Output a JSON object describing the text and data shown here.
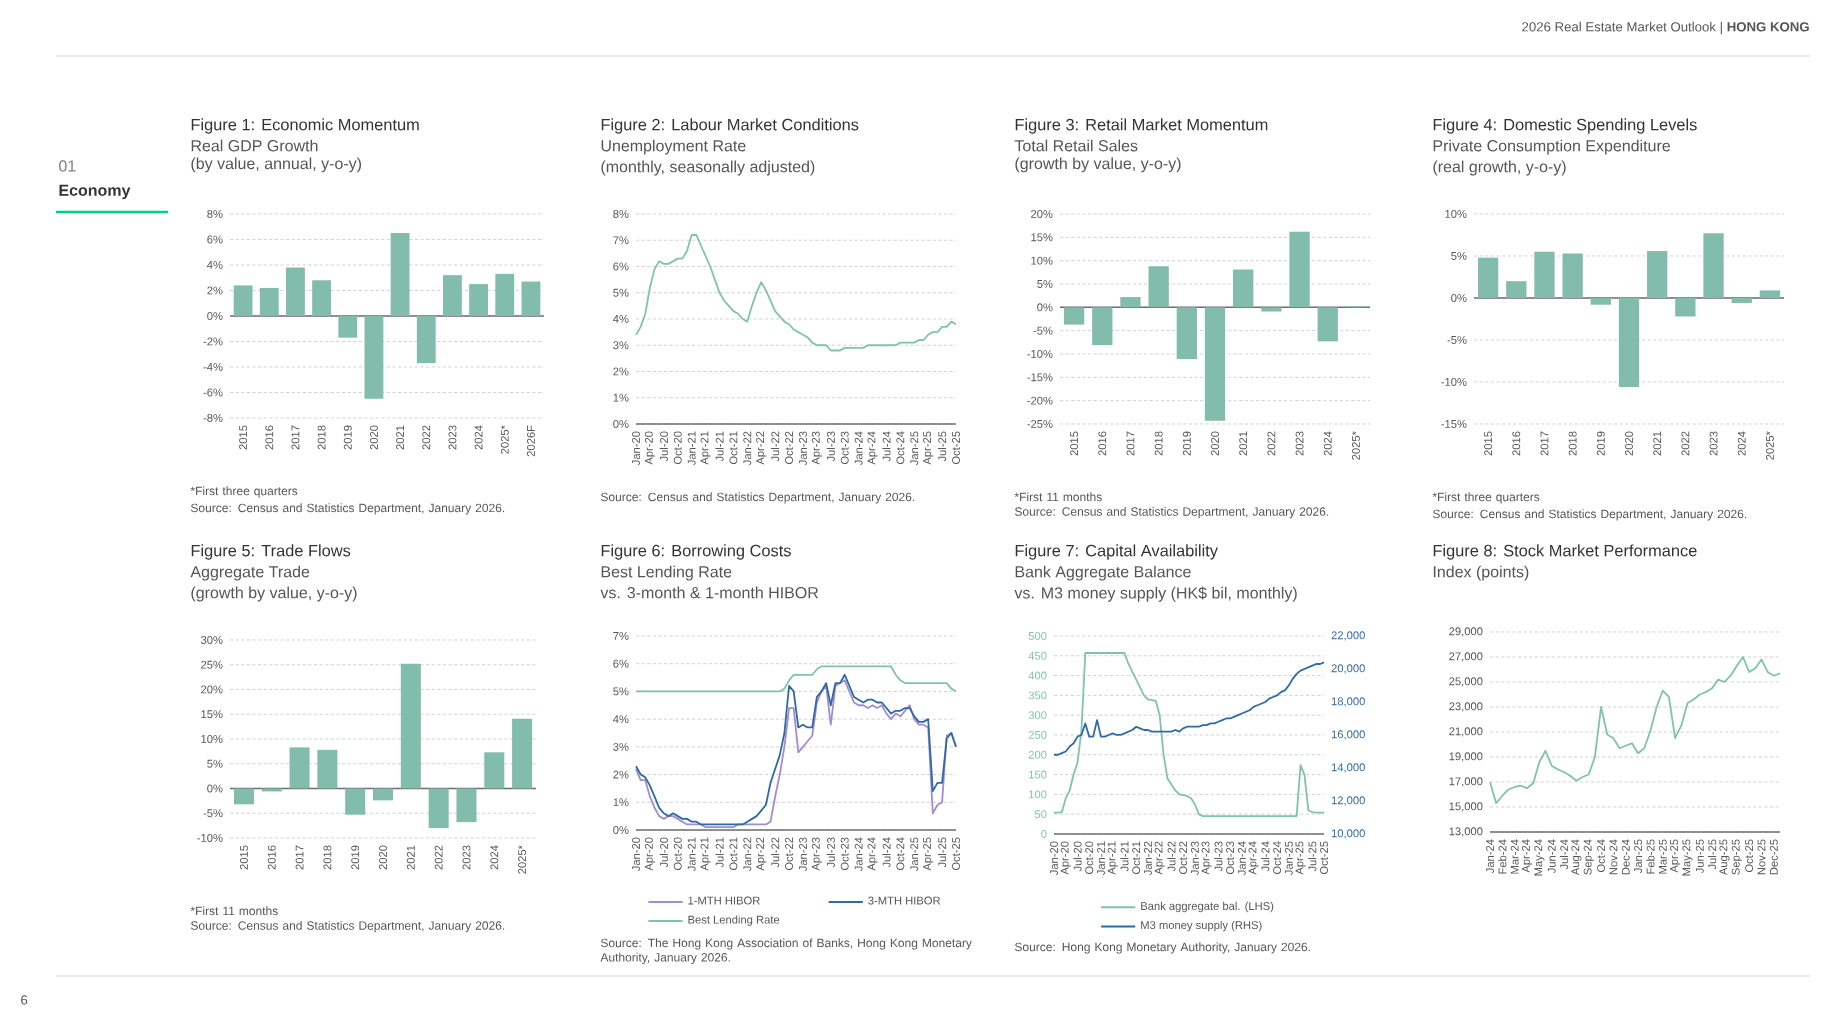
{
  "chart_data": [
    {
      "type": "bar",
      "title": "Figure 1:  Economic Momentum",
      "subtitle": [
        "Real GDP Growth",
        "(by value, annual, y-o-y)"
      ],
      "categories": [
        "2015",
        "2016",
        "2017",
        "2018",
        "2019",
        "2020",
        "2021",
        "2022",
        "2023",
        "2024",
        "2025*",
        "2026F"
      ],
      "values": [
        2.4,
        2.2,
        3.8,
        2.8,
        -1.7,
        -6.5,
        6.5,
        -3.7,
        3.2,
        2.5,
        3.3,
        2.7
      ],
      "color": "#82bcaa",
      "ylim": [
        -8,
        8
      ],
      "yticks": [
        {
          "value": -8,
          "label": "-8%"
        },
        {
          "value": -6,
          "label": "-6%"
        },
        {
          "value": -4,
          "label": "-4%"
        },
        {
          "value": -2,
          "label": "-2%"
        },
        {
          "value": 0,
          "label": "0%"
        },
        {
          "value": 2,
          "label": "2%"
        },
        {
          "value": 4,
          "label": "4%"
        },
        {
          "value": 6,
          "label": "6%"
        },
        {
          "value": 8,
          "label": "8%"
        }
      ],
      "grid": "y",
      "annotations": [
        "*First three quarters",
        "Source: Census and Statistics Department, January 2026."
      ]
    },
    {
      "type": "line",
      "title": "Figure 2:  Labour Market Conditions",
      "subtitle": [
        "Unemployment Rate",
        "(monthly, seasonally adjusted)"
      ],
      "categories": [
        "Jan-20",
        null,
        null,
        "Apr-20",
        null,
        null,
        "Jul-20",
        null,
        null,
        "Oct-20",
        null,
        null,
        "Jan-21",
        null,
        null,
        "Apr-21",
        null,
        null,
        "Jul-21",
        null,
        null,
        "Oct-21",
        null,
        null,
        "Jan-22",
        null,
        null,
        "Apr-22",
        null,
        null,
        "Jul-22",
        null,
        null,
        "Oct-22",
        null,
        null,
        "Jan-23",
        null,
        null,
        "Apr-23",
        null,
        null,
        "Jul-23",
        null,
        null,
        "Oct-23",
        null,
        null,
        "Jan-24",
        null,
        null,
        "Apr-24",
        null,
        null,
        "Jul-24",
        null,
        null,
        "Oct-24",
        null,
        null,
        "Jan-25",
        null,
        null,
        "Apr-25",
        null,
        null,
        "Jul-25",
        null,
        null,
        "Oct-25"
      ],
      "values": [
        3.4,
        3.7,
        4.2,
        5.2,
        5.9,
        6.2,
        6.1,
        6.1,
        6.2,
        6.3,
        6.3,
        6.6,
        7.2,
        7.2,
        6.8,
        6.4,
        6.0,
        5.5,
        5.0,
        4.7,
        4.5,
        4.3,
        4.2,
        4.0,
        3.9,
        4.5,
        5.0,
        5.4,
        5.1,
        4.7,
        4.3,
        4.1,
        3.9,
        3.8,
        3.6,
        3.5,
        3.4,
        3.3,
        3.1,
        3.0,
        3.0,
        3.0,
        2.8,
        2.8,
        2.8,
        2.9,
        2.9,
        2.9,
        2.9,
        2.9,
        3.0,
        3.0,
        3.0,
        3.0,
        3.0,
        3.0,
        3.0,
        3.1,
        3.1,
        3.1,
        3.1,
        3.2,
        3.2,
        3.4,
        3.5,
        3.5,
        3.7,
        3.7,
        3.9,
        3.8
      ],
      "color": "#7fc4aa",
      "ylim": [
        0,
        8
      ],
      "yticks": [
        {
          "value": 0,
          "label": "0%"
        },
        {
          "value": 1,
          "label": "1%"
        },
        {
          "value": 2,
          "label": "2%"
        },
        {
          "value": 3,
          "label": "3%"
        },
        {
          "value": 4,
          "label": "4%"
        },
        {
          "value": 5,
          "label": "5%"
        },
        {
          "value": 6,
          "label": "6%"
        },
        {
          "value": 7,
          "label": "7%"
        },
        {
          "value": 8,
          "label": "8%"
        }
      ],
      "grid": "y",
      "annotations": [
        "Source: Census and Statistics Department, January 2026."
      ]
    },
    {
      "type": "bar",
      "title": "Figure 3:  Retail Market Momentum",
      "subtitle": [
        "Total Retail Sales",
        "(growth by value, y-o-y)"
      ],
      "categories": [
        "2015",
        "2016",
        "2017",
        "2018",
        "2019",
        "2020",
        "2021",
        "2022",
        "2023",
        "2024",
        "2025*"
      ],
      "values": [
        -3.7,
        -8.1,
        2.2,
        8.8,
        -11.1,
        -24.3,
        8.1,
        -0.9,
        16.2,
        -7.3,
        0.2
      ],
      "color": "#82bcaa",
      "ylim": [
        -25,
        20
      ],
      "yticks": [
        {
          "value": -25,
          "label": "-25%"
        },
        {
          "value": -20,
          "label": "-20%"
        },
        {
          "value": -15,
          "label": "-15%"
        },
        {
          "value": -10,
          "label": "-10%"
        },
        {
          "value": -5,
          "label": "-5%"
        },
        {
          "value": 0,
          "label": "0%"
        },
        {
          "value": 5,
          "label": "5%"
        },
        {
          "value": 10,
          "label": "10%"
        },
        {
          "value": 15,
          "label": "15%"
        },
        {
          "value": 20,
          "label": "20%"
        }
      ],
      "grid": "y",
      "annotations": [
        "*First 11 months",
        "Source: Census and Statistics Department, January 2026."
      ]
    },
    {
      "type": "bar",
      "title": "Figure 4:  Domestic Spending Levels",
      "subtitle": [
        "Private Consumption Expenditure",
        "(real growth, y-o-y)"
      ],
      "categories": [
        "2015",
        "2016",
        "2017",
        "2018",
        "2019",
        "2020",
        "2021",
        "2022",
        "2023",
        "2024",
        "2025*"
      ],
      "values": [
        4.8,
        2.0,
        5.5,
        5.3,
        -0.8,
        -10.6,
        5.6,
        -2.2,
        7.7,
        -0.6,
        0.9
      ],
      "color": "#82bcaa",
      "ylim": [
        -15,
        10
      ],
      "yticks": [
        {
          "value": -15,
          "label": "-15%"
        },
        {
          "value": -10,
          "label": "-10%"
        },
        {
          "value": -5,
          "label": "-5%"
        },
        {
          "value": 0,
          "label": "0%"
        },
        {
          "value": 5,
          "label": "5%"
        },
        {
          "value": 10,
          "label": "10%"
        }
      ],
      "grid": "y",
      "annotations": [
        "*First three quarters",
        "Source: Census and Statistics Department, January 2026."
      ]
    },
    {
      "type": "bar",
      "title": "Figure 5:  Trade Flows",
      "subtitle": [
        "Aggregate Trade",
        "(growth by value, y-o-y)"
      ],
      "categories": [
        "2015",
        "2016",
        "2017",
        "2018",
        "2019",
        "2020",
        "2021",
        "2022",
        "2023",
        "2024",
        "2025*"
      ],
      "values": [
        -3.2,
        -0.6,
        8.3,
        7.8,
        -5.3,
        -2.4,
        25.2,
        -8.0,
        -6.8,
        7.3,
        14.1
      ],
      "color": "#82bcaa",
      "ylim": [
        -10,
        30
      ],
      "yticks": [
        {
          "value": -10,
          "label": "-10%"
        },
        {
          "value": -5,
          "label": "-5%"
        },
        {
          "value": 0,
          "label": "0%"
        },
        {
          "value": 5,
          "label": "5%"
        },
        {
          "value": 10,
          "label": "10%"
        },
        {
          "value": 15,
          "label": "15%"
        },
        {
          "value": 20,
          "label": "20%"
        },
        {
          "value": 25,
          "label": "25%"
        },
        {
          "value": 30,
          "label": "30%"
        }
      ],
      "grid": "y",
      "annotations": [
        "*First 11 months",
        "Source: Census and Statistics Department, January 2026."
      ]
    },
    {
      "type": "line",
      "title": "Figure 6: Borrowing Costs",
      "subtitle": [
        "Best Lending Rate",
        "vs. 3-month & 1-month HIBOR"
      ],
      "categories": [
        "Jan-20",
        null,
        null,
        "Apr-20",
        null,
        null,
        "Jul-20",
        null,
        null,
        "Oct-20",
        null,
        null,
        "Jan-21",
        null,
        null,
        "Apr-21",
        null,
        null,
        "Jul-21",
        null,
        null,
        "Oct-21",
        null,
        null,
        "Jan-22",
        null,
        null,
        "Apr-22",
        null,
        null,
        "Jul-22",
        null,
        null,
        "Oct-22",
        null,
        null,
        "Jan-23",
        null,
        null,
        "Apr-23",
        null,
        null,
        "Jul-23",
        null,
        null,
        "Oct-23",
        null,
        null,
        "Jan-24",
        null,
        null,
        "Apr-24",
        null,
        null,
        "Jul-24",
        null,
        null,
        "Oct-24",
        null,
        null,
        "Jan-25",
        null,
        null,
        "Apr-25",
        null,
        null,
        "Jul-25",
        null,
        null,
        "Oct-25"
      ],
      "series": [
        {
          "name": "1-MTH HIBOR",
          "color": "#a38bd1",
          "values": [
            2.2,
            1.8,
            1.8,
            1.2,
            0.8,
            0.5,
            0.4,
            0.5,
            0.5,
            0.4,
            0.3,
            0.2,
            0.2,
            0.2,
            0.2,
            0.1,
            0.1,
            0.1,
            0.1,
            0.1,
            0.1,
            0.1,
            0.2,
            0.2,
            0.2,
            0.2,
            0.2,
            0.2,
            0.2,
            0.3,
            1.2,
            2.0,
            3.0,
            4.4,
            4.4,
            2.8,
            3.0,
            3.2,
            3.4,
            4.6,
            5.0,
            5.2,
            3.8,
            5.2,
            5.3,
            5.4,
            5.0,
            4.6,
            4.5,
            4.5,
            4.4,
            4.5,
            4.4,
            4.5,
            4.2,
            4.0,
            4.2,
            4.1,
            4.3,
            4.5,
            4.0,
            3.8,
            3.8,
            3.7,
            0.6,
            0.9,
            1.0,
            3.4,
            3.5,
            3.0
          ]
        },
        {
          "name": "3-MTH HIBOR",
          "color": "#2e6aa6",
          "values": [
            2.3,
            2.0,
            1.9,
            1.6,
            1.2,
            0.8,
            0.6,
            0.5,
            0.6,
            0.5,
            0.4,
            0.4,
            0.3,
            0.3,
            0.2,
            0.2,
            0.2,
            0.2,
            0.2,
            0.2,
            0.2,
            0.2,
            0.2,
            0.2,
            0.3,
            0.4,
            0.5,
            0.7,
            0.9,
            1.7,
            2.2,
            2.7,
            3.5,
            5.2,
            5.0,
            3.7,
            3.8,
            3.7,
            3.7,
            4.8,
            5.0,
            5.3,
            4.5,
            5.3,
            5.3,
            5.6,
            5.2,
            4.8,
            4.7,
            4.6,
            4.7,
            4.7,
            4.6,
            4.6,
            4.4,
            4.2,
            4.3,
            4.3,
            4.4,
            4.4,
            4.1,
            3.9,
            3.9,
            4.0,
            1.4,
            1.7,
            1.7,
            3.3,
            3.5,
            3.0
          ]
        },
        {
          "name": "Best Lending Rate",
          "color": "#7fc4aa",
          "values": [
            5.0,
            5.0,
            5.0,
            5.0,
            5.0,
            5.0,
            5.0,
            5.0,
            5.0,
            5.0,
            5.0,
            5.0,
            5.0,
            5.0,
            5.0,
            5.0,
            5.0,
            5.0,
            5.0,
            5.0,
            5.0,
            5.0,
            5.0,
            5.0,
            5.0,
            5.0,
            5.0,
            5.0,
            5.0,
            5.0,
            5.0,
            5.0,
            5.1,
            5.4,
            5.6,
            5.6,
            5.6,
            5.6,
            5.6,
            5.8,
            5.9,
            5.9,
            5.9,
            5.9,
            5.9,
            5.9,
            5.9,
            5.9,
            5.9,
            5.9,
            5.9,
            5.9,
            5.9,
            5.9,
            5.9,
            5.9,
            5.6,
            5.4,
            5.3,
            5.3,
            5.3,
            5.3,
            5.3,
            5.3,
            5.3,
            5.3,
            5.3,
            5.3,
            5.1,
            5.0
          ]
        }
      ],
      "ylim": [
        0,
        7
      ],
      "yticks": [
        {
          "value": 0,
          "label": "0%"
        },
        {
          "value": 1,
          "label": "1%"
        },
        {
          "value": 2,
          "label": "2%"
        },
        {
          "value": 3,
          "label": "3%"
        },
        {
          "value": 4,
          "label": "4%"
        },
        {
          "value": 5,
          "label": "5%"
        },
        {
          "value": 6,
          "label": "6%"
        },
        {
          "value": 7,
          "label": "7%"
        }
      ],
      "grid": "y",
      "legend": "bottom",
      "annotations": [
        "Source: The Hong Kong Association of Banks, Hong Kong Monetary Authority, January 2026."
      ]
    },
    {
      "type": "line",
      "title": "Figure 7:  Capital Availability",
      "subtitle": [
        "Bank Aggregate Balance",
        "vs. M3 money supply (HK$ bil, monthly)"
      ],
      "categories": [
        "Jan-20",
        null,
        null,
        "Apr-20",
        null,
        null,
        "Jul-20",
        null,
        null,
        "Oct-20",
        null,
        null,
        "Jan-21",
        null,
        null,
        "Apr-21",
        null,
        null,
        "Jul-21",
        null,
        null,
        "Oct-21",
        null,
        null,
        "Jan-22",
        null,
        null,
        "Apr-22",
        null,
        null,
        "Jul-22",
        null,
        null,
        "Oct-22",
        null,
        null,
        "Jan-23",
        null,
        null,
        "Apr-23",
        null,
        null,
        "Jul-23",
        null,
        null,
        "Oct-23",
        null,
        null,
        "Jan-24",
        null,
        null,
        "Apr-24",
        null,
        null,
        "Jul-24",
        null,
        null,
        "Oct-24",
        null,
        null,
        "Jan-25",
        null,
        null,
        "Apr-25",
        null,
        null,
        "Jul-25",
        null,
        null,
        "Oct-25"
      ],
      "series": [
        {
          "name": "Bank aggregate bal. (LHS)",
          "color": "#7fc4aa",
          "values": [
            54,
            54,
            55,
            90,
            110,
            150,
            180,
            260,
            457,
            457,
            457,
            457,
            457,
            457,
            457,
            457,
            457,
            457,
            457,
            430,
            410,
            390,
            370,
            350,
            340,
            338,
            336,
            300,
            200,
            140,
            125,
            110,
            100,
            98,
            96,
            90,
            75,
            50,
            45,
            45,
            45,
            45,
            45,
            45,
            45,
            45,
            45,
            45,
            45,
            45,
            45,
            45,
            45,
            45,
            45,
            45,
            45,
            45,
            45,
            45,
            45,
            45,
            45,
            174,
            150,
            60,
            55,
            54,
            54,
            54
          ]
        },
        {
          "name": "M3 money supply (RHS)",
          "color": "#2e6aa6",
          "axis": "y2",
          "values": [
            14800,
            14800,
            14900,
            15000,
            15300,
            15500,
            15900,
            16000,
            16700,
            15900,
            15900,
            16900,
            15900,
            15900,
            16000,
            16100,
            16000,
            16000,
            16100,
            16200,
            16300,
            16500,
            16400,
            16300,
            16300,
            16200,
            16200,
            16200,
            16200,
            16200,
            16200,
            16300,
            16200,
            16400,
            16500,
            16500,
            16500,
            16500,
            16600,
            16600,
            16700,
            16700,
            16800,
            16900,
            17000,
            17000,
            17100,
            17200,
            17300,
            17400,
            17500,
            17700,
            17800,
            17900,
            18000,
            18200,
            18300,
            18400,
            18600,
            18700,
            19000,
            19400,
            19700,
            19900,
            20000,
            20100,
            20200,
            20300,
            20300,
            20400
          ]
        }
      ],
      "ylim": [
        0,
        500
      ],
      "yticks": [
        0,
        50,
        100,
        150,
        200,
        250,
        300,
        350,
        400,
        450,
        500
      ],
      "y2lim": [
        10000,
        22000
      ],
      "y2ticks": [
        {
          "value": 10000,
          "label": "10,000"
        },
        {
          "value": 12000,
          "label": "12,000"
        },
        {
          "value": 14000,
          "label": "14,000"
        },
        {
          "value": 16000,
          "label": "16,000"
        },
        {
          "value": 18000,
          "label": "18,000"
        },
        {
          "value": 20000,
          "label": "20,000"
        },
        {
          "value": 22000,
          "label": "22,000"
        }
      ],
      "grid": "y",
      "legend": "bottom",
      "annotations": [
        "Source: Hong Kong Monetary Authority, January 2026."
      ]
    },
    {
      "type": "line",
      "title": "Figure 8:  Stock Market Performance",
      "subtitle": [
        "Index (points)"
      ],
      "categories": [
        "Jan-24",
        null,
        "Feb-24",
        null,
        "Mar-24",
        null,
        "Apr-24",
        null,
        "May-24",
        null,
        "Jun-24",
        null,
        "Jul-24",
        null,
        "Aug-24",
        null,
        "Sep-24",
        null,
        "Oct-24",
        null,
        "Nov-24",
        null,
        "Dec-24",
        null,
        "Jan-25",
        null,
        "Feb-25",
        null,
        "Mar-25",
        null,
        "Apr-25",
        null,
        "May-25",
        null,
        "Jun-25",
        null,
        "Jul-25",
        null,
        "Aug-25",
        null,
        "Sep-25",
        null,
        "Oct-25",
        null,
        "Nov-25",
        null,
        "Dec-25",
        null
      ],
      "values": [
        17000,
        15300,
        15900,
        16400,
        16600,
        16700,
        16500,
        16900,
        18600,
        19500,
        18300,
        18000,
        17800,
        17500,
        17100,
        17400,
        17600,
        19000,
        23000,
        20800,
        20500,
        19700,
        19900,
        20100,
        19300,
        19700,
        21100,
        23000,
        24300,
        23800,
        20500,
        21500,
        23300,
        23600,
        24000,
        24200,
        24500,
        25200,
        25000,
        25500,
        26300,
        27000,
        25800,
        26100,
        26800,
        25800,
        25500,
        25700
      ],
      "color": "#7fc4aa",
      "ylim": [
        13000,
        29000
      ],
      "yticks": [
        {
          "value": 13000,
          "label": "13,000"
        },
        {
          "value": 15000,
          "label": "15,000"
        },
        {
          "value": 17000,
          "label": "17,000"
        },
        {
          "value": 19000,
          "label": "19,000"
        },
        {
          "value": 21000,
          "label": "21,000"
        },
        {
          "value": 23000,
          "label": "23,000"
        },
        {
          "value": 25000,
          "label": "25,000"
        },
        {
          "value": 27000,
          "label": "27,000"
        },
        {
          "value": 29000,
          "label": "29,000"
        }
      ],
      "grid": "y"
    },
    {
      "type": "other",
      "annotations": [
        "2026 Real Estate Market Outlook  |  **HONG KONG**",
        "01",
        "Economy",
        "6"
      ]
    }
  ]
}
